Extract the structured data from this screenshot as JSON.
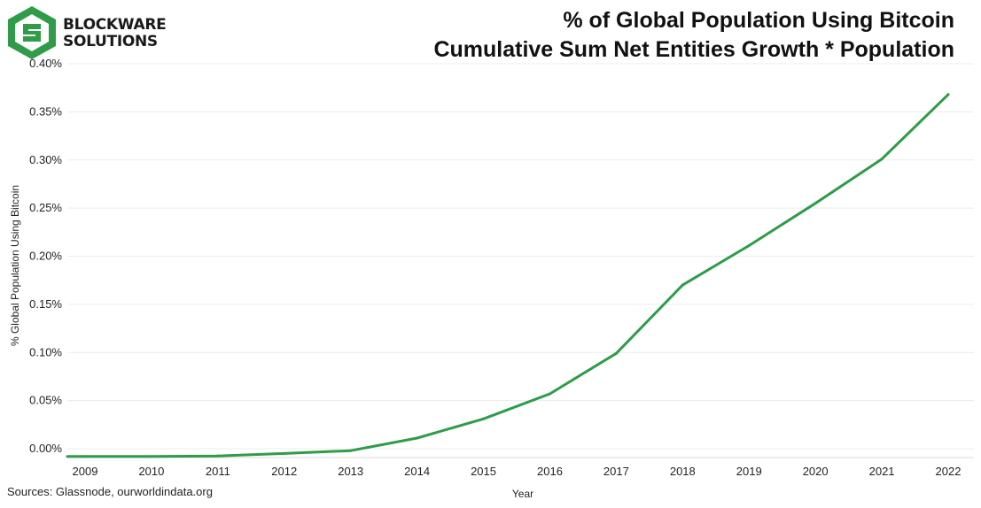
{
  "header": {
    "logo_line1": "BLOCKWARE",
    "logo_line2": "SOLUTIONS",
    "title_line1": "% of Global Population Using Bitcoin",
    "title_line2": "Cumulative Sum Net Entities Growth * Population"
  },
  "footer": {
    "source": "Sources: Glassnode, ourworldindata.org"
  },
  "colors": {
    "line": "#2e9c48",
    "logo": "#2e9c48",
    "grid": "#ececec"
  },
  "chart_data": {
    "type": "line",
    "xlabel": "Year",
    "ylabel": "% Global Population Using Bitcoin",
    "x": [
      2009,
      2010,
      2011,
      2012,
      2013,
      2014,
      2015,
      2016,
      2017,
      2018,
      2019,
      2020,
      2021,
      2022
    ],
    "x_tick_labels": [
      "2009",
      "2010",
      "2011",
      "2012",
      "2013",
      "2014",
      "2015",
      "2016",
      "2017",
      "2018",
      "2019",
      "2020",
      "2021",
      "2022"
    ],
    "y_tick_values": [
      0,
      0.05,
      0.1,
      0.15,
      0.2,
      0.25,
      0.3,
      0.35,
      0.4
    ],
    "y_tick_labels": [
      "0.00%",
      "0.05%",
      "0.10%",
      "0.15%",
      "0.20%",
      "0.25%",
      "0.30%",
      "0.35%",
      "0.40%"
    ],
    "ylim": [
      0,
      0.4
    ],
    "grid": true,
    "series": [
      {
        "values": [
          -0.008,
          -0.008,
          -0.0075,
          -0.005,
          -0.002,
          0.011,
          0.031,
          0.057,
          0.099,
          0.17,
          0.211,
          0.255,
          0.301,
          0.368
        ]
      }
    ]
  }
}
